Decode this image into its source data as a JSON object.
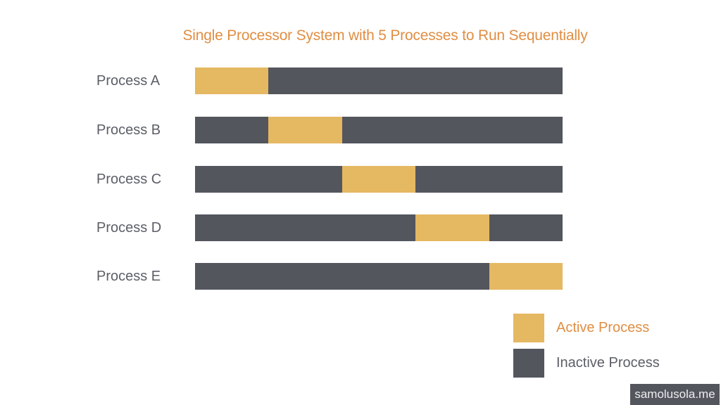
{
  "title": "Single Processor System with 5 Processes to Run Sequentially",
  "colors": {
    "active": "#E5B862",
    "inactive": "#54565E",
    "title_text": "#E08E43",
    "label_text": "#5B5F66",
    "background": "#FFFFFF",
    "watermark_bg": "#54565E",
    "watermark_text": "#ECEEEF"
  },
  "chart_data": {
    "type": "bar",
    "variant": "horizontal-stacked-timeline",
    "title": "Single Processor System with 5 Processes to Run Sequentially",
    "categories": [
      "Process A",
      "Process B",
      "Process C",
      "Process D",
      "Process E"
    ],
    "x_axis": {
      "unit": "time-slot",
      "total_slots": 5,
      "range_pct": [
        0,
        100
      ],
      "ticks_visible": false
    },
    "grid": false,
    "legend_position": "bottom-right",
    "rows": [
      {
        "label": "Process A",
        "active_slot": 1,
        "segments": [
          {
            "state": "active",
            "start_pct": 0,
            "width_pct": 20
          },
          {
            "state": "inactive",
            "start_pct": 20,
            "width_pct": 80
          }
        ]
      },
      {
        "label": "Process B",
        "active_slot": 2,
        "segments": [
          {
            "state": "inactive",
            "start_pct": 0,
            "width_pct": 20
          },
          {
            "state": "active",
            "start_pct": 20,
            "width_pct": 20
          },
          {
            "state": "inactive",
            "start_pct": 40,
            "width_pct": 60
          }
        ]
      },
      {
        "label": "Process C",
        "active_slot": 3,
        "segments": [
          {
            "state": "inactive",
            "start_pct": 0,
            "width_pct": 40
          },
          {
            "state": "active",
            "start_pct": 40,
            "width_pct": 20
          },
          {
            "state": "inactive",
            "start_pct": 60,
            "width_pct": 40
          }
        ]
      },
      {
        "label": "Process D",
        "active_slot": 4,
        "segments": [
          {
            "state": "inactive",
            "start_pct": 0,
            "width_pct": 60
          },
          {
            "state": "active",
            "start_pct": 60,
            "width_pct": 20
          },
          {
            "state": "inactive",
            "start_pct": 80,
            "width_pct": 20
          }
        ]
      },
      {
        "label": "Process E",
        "active_slot": 5,
        "segments": [
          {
            "state": "inactive",
            "start_pct": 0,
            "width_pct": 80
          },
          {
            "state": "active",
            "start_pct": 80,
            "width_pct": 20
          }
        ]
      }
    ],
    "legend": [
      {
        "label": "Active Process",
        "state": "active",
        "color": "#E5B862",
        "text_color": "#E08E43"
      },
      {
        "label": "Inactive Process",
        "state": "inactive",
        "color": "#54565E",
        "text_color": "#5B5F66"
      }
    ]
  },
  "watermark": {
    "text": "samolusola.me"
  }
}
